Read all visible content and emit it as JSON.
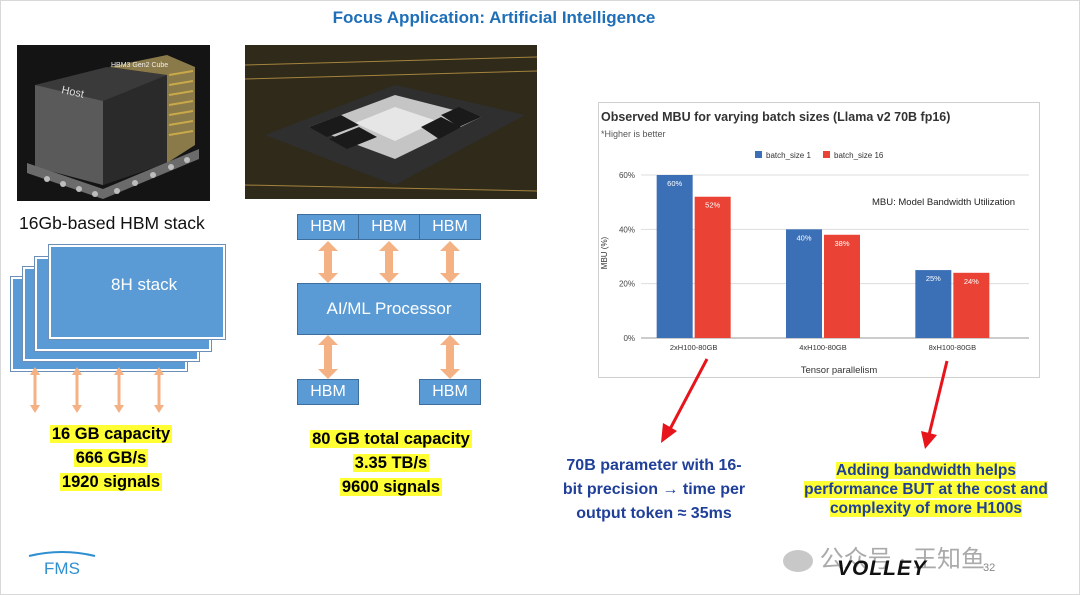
{
  "title": "Focus Application: Artificial Intelligence",
  "left": {
    "photo_labels": {
      "host": "Host",
      "cube": "HBM3 Gen2 Cube"
    },
    "caption": "16Gb-based HBM stack",
    "stack_label": "8H stack",
    "specs": [
      "16 GB capacity",
      "666 GB/s",
      "1920 signals"
    ]
  },
  "middle": {
    "hbm_label": "HBM",
    "processor_label": "AI/ML Processor",
    "specs": [
      "80 GB total capacity",
      "3.35 TB/s",
      "9600 signals"
    ]
  },
  "chart_data": {
    "type": "bar",
    "title": "Observed MBU for varying batch sizes (Llama v2 70B fp16)",
    "subtitle": "*Higher is better",
    "annotation": "MBU: Model Bandwidth Utilization",
    "xlabel": "Tensor parallelism",
    "ylabel": "MBU (%)",
    "categories": [
      "2xH100-80GB",
      "4xH100-80GB",
      "8xH100-80GB"
    ],
    "ylim": [
      0,
      60
    ],
    "yticks": [
      "0%",
      "20%",
      "40%",
      "60%"
    ],
    "legend_position": "top",
    "grid": true,
    "series": [
      {
        "name": "batch_size 1",
        "color": "#3b6fb6",
        "values": [
          60,
          40,
          25
        ],
        "labels": [
          "60%",
          "40%",
          "25%"
        ]
      },
      {
        "name": "batch_size 16",
        "color": "#ea4335",
        "values": [
          52,
          38,
          24
        ],
        "labels": [
          "52%",
          "38%",
          "24%"
        ]
      }
    ]
  },
  "notes": {
    "blue": [
      "70B parameter with 16-",
      "bit precision → time per",
      "output token ≈ 35ms"
    ],
    "yellow": [
      "Adding bandwidth helps",
      "performance BUT at the cost and",
      "complexity of more H100s"
    ]
  },
  "footer": {
    "logo": "FMS",
    "brand": "VOLLEY",
    "watermark": "公众号 · 王知鱼",
    "page": "32"
  },
  "colors": {
    "title": "#1f6fb8",
    "box": "#5b9bd5",
    "arrow_peach": "#f4b183",
    "arrow_red": "#e8141b",
    "highlight": "#ffff33"
  }
}
